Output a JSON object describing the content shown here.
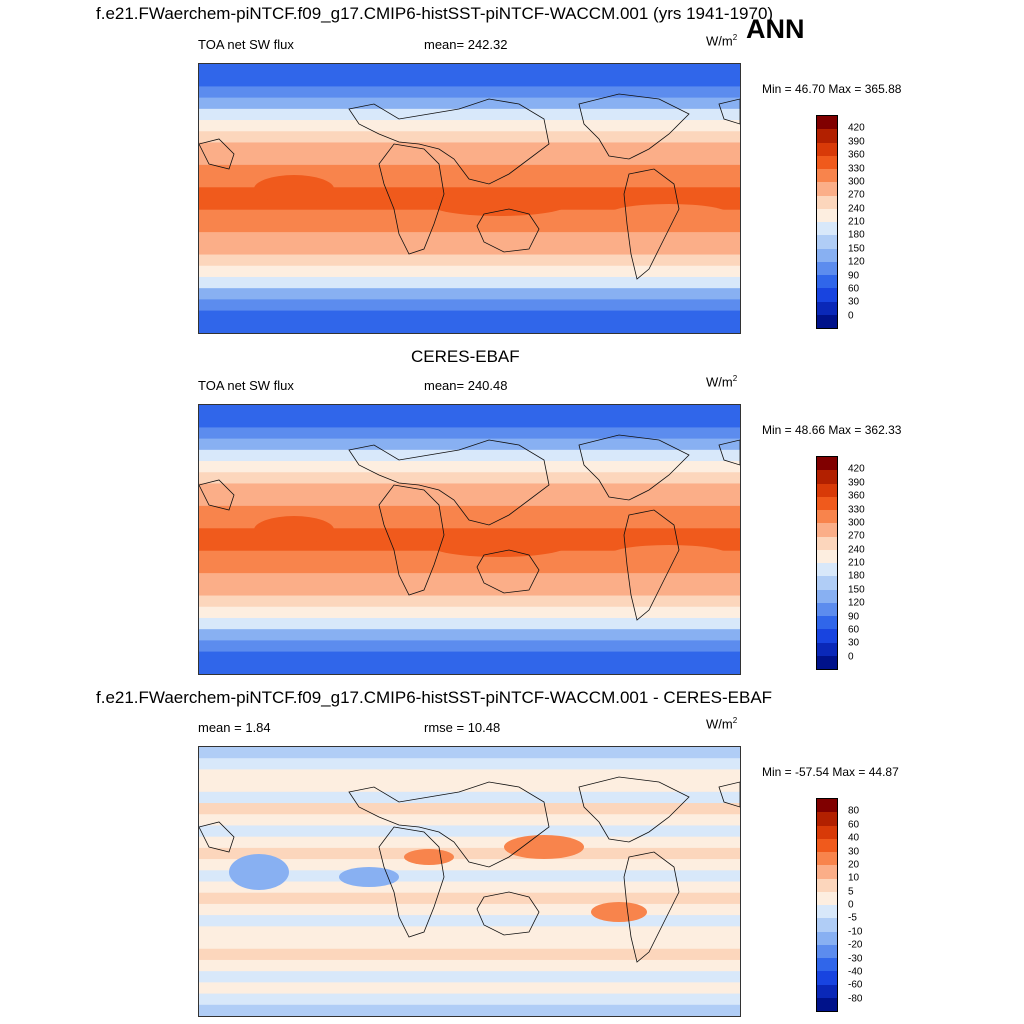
{
  "season": "ANN",
  "chart_data": [
    {
      "type": "heatmap",
      "title": "f.e21.FWaerchem-piNTCF.f09_g17.CMIP6-histSST-piNTCF-WACCM.001 (yrs 1941-1970)",
      "variable": "TOA net SW flux",
      "mean_text": "mean= 242.32",
      "units_base": "W/m",
      "units_exp": "2",
      "minmax_text": "Min =  46.70 Max = 365.88",
      "min": 46.7,
      "max": 365.88,
      "mean": 242.32,
      "levels": [
        420,
        390,
        360,
        330,
        300,
        270,
        240,
        210,
        180,
        150,
        120,
        90,
        60,
        30,
        0
      ],
      "palette": [
        "#800000",
        "#b22000",
        "#d83a08",
        "#f05a1c",
        "#f8844c",
        "#fbae88",
        "#fcd6bc",
        "#fdeee0",
        "#d8e8fa",
        "#b0cdf6",
        "#88b0f2",
        "#5c8cee",
        "#3066ea",
        "#1844e0",
        "#0a28b8",
        "#00128a"
      ]
    },
    {
      "type": "heatmap",
      "title": "CERES-EBAF",
      "variable": "TOA net SW flux",
      "mean_text": "mean= 240.48",
      "units_base": "W/m",
      "units_exp": "2",
      "minmax_text": "Min =  48.66 Max = 362.33",
      "min": 48.66,
      "max": 362.33,
      "mean": 240.48,
      "levels": [
        420,
        390,
        360,
        330,
        300,
        270,
        240,
        210,
        180,
        150,
        120,
        90,
        60,
        30,
        0
      ],
      "palette": [
        "#800000",
        "#b22000",
        "#d83a08",
        "#f05a1c",
        "#f8844c",
        "#fbae88",
        "#fcd6bc",
        "#fdeee0",
        "#d8e8fa",
        "#b0cdf6",
        "#88b0f2",
        "#5c8cee",
        "#3066ea",
        "#1844e0",
        "#0a28b8",
        "#00128a"
      ]
    },
    {
      "type": "heatmap",
      "title": "f.e21.FWaerchem-piNTCF.f09_g17.CMIP6-histSST-piNTCF-WACCM.001 - CERES-EBAF",
      "mean_text": "mean =   1.84",
      "rmse_text": "rmse =  10.48",
      "units_base": "W/m",
      "units_exp": "2",
      "minmax_text": "Min = -57.54 Max =  44.87",
      "min": -57.54,
      "max": 44.87,
      "mean": 1.84,
      "rmse": 10.48,
      "levels": [
        80,
        60,
        40,
        30,
        20,
        10,
        5,
        0,
        -5,
        -10,
        -20,
        -30,
        -40,
        -60,
        -80
      ],
      "palette": [
        "#800000",
        "#b22000",
        "#d83a08",
        "#f05a1c",
        "#f8844c",
        "#fbae88",
        "#fcd6bc",
        "#fdeee0",
        "#d8e8fa",
        "#b0cdf6",
        "#88b0f2",
        "#5c8cee",
        "#3066ea",
        "#1844e0",
        "#0a28b8",
        "#00128a"
      ]
    }
  ]
}
